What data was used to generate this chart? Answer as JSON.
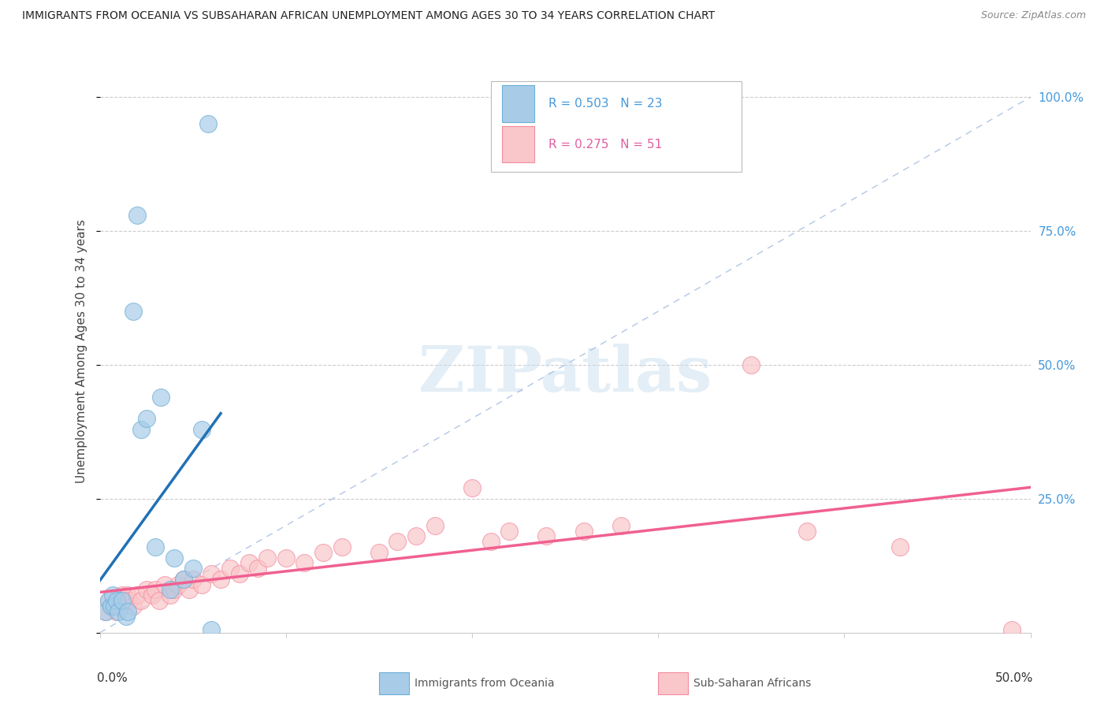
{
  "title": "IMMIGRANTS FROM OCEANIA VS SUBSAHARAN AFRICAN UNEMPLOYMENT AMONG AGES 30 TO 34 YEARS CORRELATION CHART",
  "source": "Source: ZipAtlas.com",
  "ylabel": "Unemployment Among Ages 30 to 34 years",
  "xlim": [
    0.0,
    0.5
  ],
  "ylim": [
    0.0,
    1.05
  ],
  "watermark": "ZIPatlas",
  "legend_r1": "R = 0.503",
  "legend_n1": "N = 23",
  "legend_r2": "R = 0.275",
  "legend_n2": "N = 51",
  "oceania_color": "#a8cce8",
  "oceania_edge_color": "#6baed6",
  "subsaharan_color": "#f9c6c9",
  "subsaharan_edge_color": "#f48ca0",
  "oceania_line_color": "#2171b5",
  "subsaharan_line_color": "#f06090",
  "diagonal_color": "#a0b8e0",
  "oceania_x": [
    0.003,
    0.005,
    0.006,
    0.007,
    0.008,
    0.009,
    0.01,
    0.012,
    0.014,
    0.015,
    0.018,
    0.02,
    0.022,
    0.025,
    0.03,
    0.033,
    0.038,
    0.04,
    0.045,
    0.05,
    0.055,
    0.058,
    0.06
  ],
  "oceania_y": [
    0.04,
    0.06,
    0.05,
    0.07,
    0.05,
    0.06,
    0.04,
    0.06,
    0.03,
    0.04,
    0.6,
    0.78,
    0.38,
    0.4,
    0.16,
    0.44,
    0.08,
    0.14,
    0.1,
    0.12,
    0.38,
    0.95,
    0.005
  ],
  "subsaharan_x": [
    0.003,
    0.005,
    0.006,
    0.008,
    0.009,
    0.01,
    0.011,
    0.012,
    0.014,
    0.015,
    0.016,
    0.018,
    0.02,
    0.022,
    0.025,
    0.028,
    0.03,
    0.032,
    0.035,
    0.038,
    0.04,
    0.042,
    0.045,
    0.048,
    0.05,
    0.055,
    0.06,
    0.065,
    0.07,
    0.075,
    0.08,
    0.085,
    0.09,
    0.1,
    0.11,
    0.12,
    0.13,
    0.15,
    0.16,
    0.17,
    0.18,
    0.2,
    0.21,
    0.22,
    0.24,
    0.26,
    0.28,
    0.35,
    0.38,
    0.43,
    0.49
  ],
  "subsaharan_y": [
    0.04,
    0.06,
    0.05,
    0.05,
    0.04,
    0.06,
    0.05,
    0.07,
    0.06,
    0.07,
    0.06,
    0.05,
    0.07,
    0.06,
    0.08,
    0.07,
    0.08,
    0.06,
    0.09,
    0.07,
    0.08,
    0.09,
    0.1,
    0.08,
    0.1,
    0.09,
    0.11,
    0.1,
    0.12,
    0.11,
    0.13,
    0.12,
    0.14,
    0.14,
    0.13,
    0.15,
    0.16,
    0.15,
    0.17,
    0.18,
    0.2,
    0.27,
    0.17,
    0.19,
    0.18,
    0.19,
    0.2,
    0.5,
    0.19,
    0.16,
    0.005
  ]
}
